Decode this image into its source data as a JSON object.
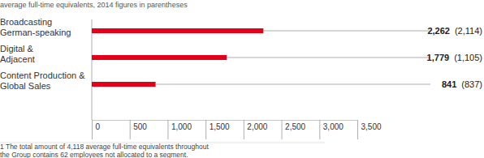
{
  "chart_data": {
    "type": "bar",
    "orientation": "horizontal",
    "subtitle": "average full-time equivalents, 2014 figures in parentheses",
    "categories": [
      "Broadcasting\nGerman-speaking",
      "Digital &\nAdjacent",
      "Content Production &\nGlobal Sales"
    ],
    "values": [
      2262,
      1779,
      841
    ],
    "value_labels": [
      "2,262",
      "1,779",
      "841"
    ],
    "prior_values": [
      2114,
      1105,
      837
    ],
    "prior_value_labels": [
      "(2,114)",
      "(1,105)",
      "(837)"
    ],
    "color": "#e2001a",
    "xlim": [
      0,
      3500
    ],
    "xticks": [
      0,
      500,
      {
        "value": 1000,
        "label": "1,000"
      },
      {
        "value": 1500,
        "label": "1,500"
      },
      {
        "value": 2000,
        "label": "2,000"
      },
      {
        "value": 2500,
        "label": "2,500"
      },
      {
        "value": 3000,
        "label": "3,000"
      },
      {
        "value": 3500,
        "label": "3,500"
      }
    ],
    "data_labels": true,
    "footnote": "1 The total amount of 4,118 average full-time equivalents throughout\nthe Group contains 62 employees not allocated to a segment."
  }
}
